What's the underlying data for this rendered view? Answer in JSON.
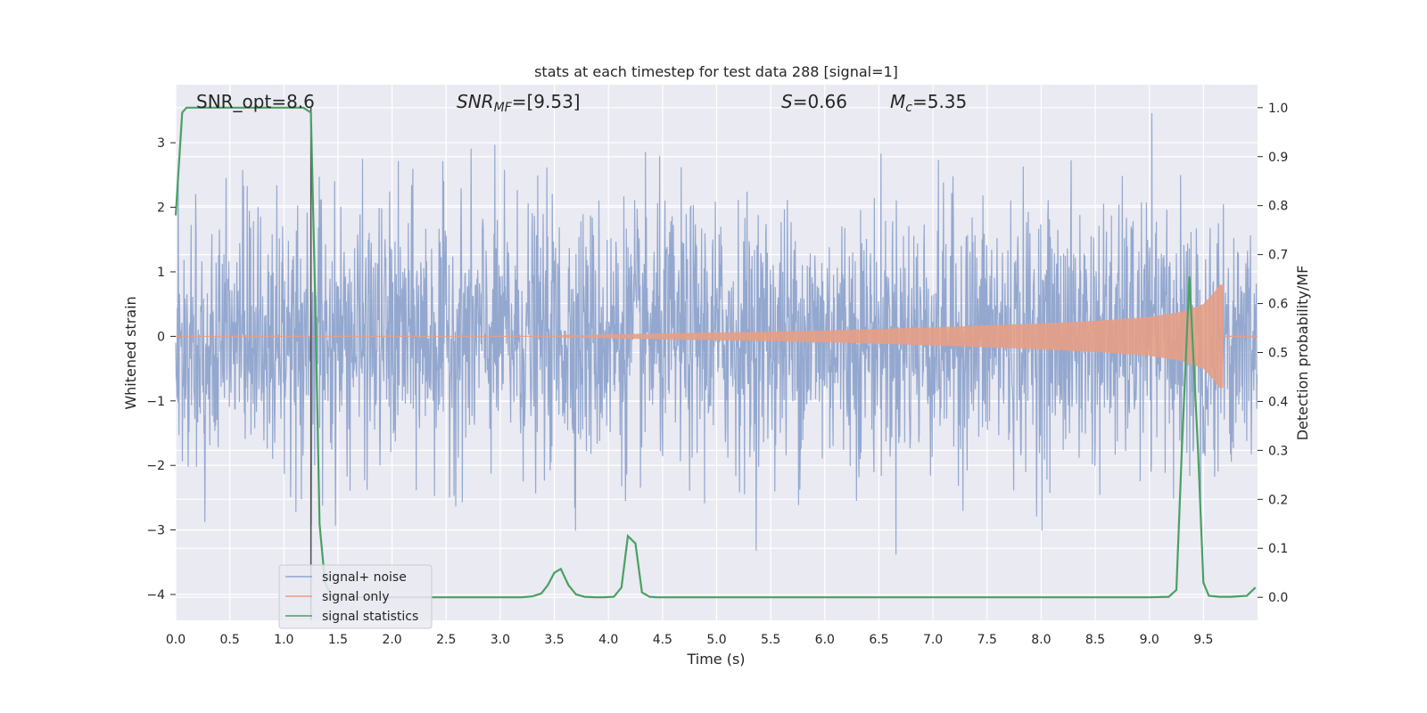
{
  "chart_data": {
    "type": "line",
    "title": "stats at each timestep for test data 288 [signal=1]",
    "xlabel": "Time (s)",
    "ylabel_left": "Whitened strain",
    "ylabel_right": "Detection probability/MF",
    "xlim": [
      0.0,
      10.0
    ],
    "ylim_left": [
      -4.4,
      3.9
    ],
    "ylim_right": [
      -0.047,
      1.047
    ],
    "x_ticks": [
      0.0,
      0.5,
      1.0,
      1.5,
      2.0,
      2.5,
      3.0,
      3.5,
      4.0,
      4.5,
      5.0,
      5.5,
      6.0,
      6.5,
      7.0,
      7.5,
      8.0,
      8.5,
      9.0,
      9.5
    ],
    "x_tick_labels": [
      "0.0",
      "0.5",
      "1.0",
      "1.5",
      "2.0",
      "2.5",
      "3.0",
      "3.5",
      "4.0",
      "4.5",
      "5.0",
      "5.5",
      "6.0",
      "6.5",
      "7.0",
      "7.5",
      "8.0",
      "8.5",
      "9.0",
      "9.5"
    ],
    "y_ticks_left": [
      3,
      2,
      1,
      0,
      -1,
      -2,
      -3,
      -4
    ],
    "y_tick_labels_left": [
      "3",
      "2",
      "1",
      "0",
      "−1",
      "−2",
      "−3",
      "−4"
    ],
    "y_ticks_right": [
      1.0,
      0.9,
      0.8,
      0.7,
      0.6,
      0.5,
      0.4,
      0.3,
      0.2,
      0.1,
      0.0
    ],
    "y_tick_labels_right": [
      "1.0",
      "0.9",
      "0.8",
      "0.7",
      "0.6",
      "0.5",
      "0.4",
      "0.3",
      "0.2",
      "0.1",
      "0.0"
    ],
    "grid": true,
    "annotations": {
      "snr_opt": "SNR_opt=8.6",
      "snr_mf_name": "SNR",
      "snr_mf_sub": "MF",
      "snr_mf_value": "=[9.53]",
      "s_name": "S",
      "s_value": "=0.66",
      "mc_name": "M",
      "mc_sub": "c",
      "mc_value": "=5.35"
    },
    "vertical_marker_x": 1.25,
    "legend": {
      "placement": "lower-left",
      "entries": [
        {
          "label": "signal+ noise",
          "color": "#8fa4cc"
        },
        {
          "label": "signal only",
          "color": "#e59f85"
        },
        {
          "label": "signal statistics",
          "color": "#4aa064"
        }
      ]
    },
    "series": [
      {
        "name": "signal+ noise",
        "axis": "left",
        "color": "#8fa4cc",
        "kind": "noise",
        "envelope_typical": 2.0,
        "peak_range": [
          -3.6,
          3.5
        ]
      },
      {
        "name": "signal only",
        "axis": "left",
        "color": "#e59f85",
        "kind": "chirp",
        "x_end": 9.68,
        "amplitude_at": [
          [
            3.5,
            0.0
          ],
          [
            4.0,
            0.03
          ],
          [
            5.0,
            0.06
          ],
          [
            6.0,
            0.09
          ],
          [
            7.0,
            0.14
          ],
          [
            8.0,
            0.2
          ],
          [
            8.5,
            0.24
          ],
          [
            9.0,
            0.3
          ],
          [
            9.3,
            0.38
          ],
          [
            9.5,
            0.5
          ],
          [
            9.6,
            0.68
          ],
          [
            9.65,
            0.8
          ]
        ]
      },
      {
        "name": "signal statistics",
        "axis": "right",
        "color": "#4aa064",
        "x": [
          0.0,
          0.06,
          0.1,
          0.2,
          0.5,
          0.8,
          1.0,
          1.18,
          1.25,
          1.29,
          1.33,
          1.38,
          1.45,
          1.6,
          2.0,
          2.5,
          3.0,
          3.2,
          3.3,
          3.38,
          3.44,
          3.5,
          3.56,
          3.63,
          3.7,
          3.78,
          3.88,
          3.95,
          4.05,
          4.12,
          4.18,
          4.25,
          4.31,
          4.38,
          4.45,
          5.0,
          6.0,
          7.0,
          8.0,
          9.0,
          9.18,
          9.25,
          9.3,
          9.37,
          9.45,
          9.5,
          9.55,
          9.65,
          9.75,
          9.9,
          9.98
        ],
        "values": [
          0.78,
          0.99,
          1.0,
          1.0,
          1.0,
          1.0,
          1.0,
          1.0,
          0.99,
          0.6,
          0.15,
          0.03,
          0.0,
          0.0,
          0.0,
          0.0,
          0.0,
          0.0,
          0.002,
          0.008,
          0.025,
          0.05,
          0.058,
          0.025,
          0.006,
          0.001,
          0.0,
          0.0,
          0.001,
          0.02,
          0.125,
          0.11,
          0.01,
          0.001,
          0.0,
          0.0,
          0.0,
          0.0,
          0.0,
          0.0,
          0.001,
          0.015,
          0.3,
          0.655,
          0.3,
          0.03,
          0.003,
          0.001,
          0.001,
          0.003,
          0.02
        ]
      }
    ]
  }
}
